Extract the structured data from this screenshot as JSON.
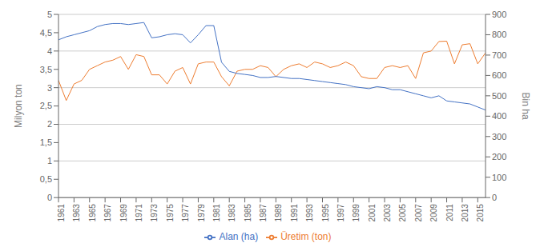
{
  "chart_data": {
    "type": "line",
    "x": [
      1961,
      1962,
      1963,
      1964,
      1965,
      1966,
      1967,
      1968,
      1969,
      1970,
      1971,
      1972,
      1973,
      1974,
      1975,
      1976,
      1977,
      1978,
      1979,
      1980,
      1981,
      1982,
      1983,
      1984,
      1985,
      1986,
      1987,
      1988,
      1989,
      1990,
      1991,
      1992,
      1993,
      1994,
      1995,
      1996,
      1997,
      1998,
      1999,
      2000,
      2001,
      2002,
      2003,
      2004,
      2005,
      2006,
      2007,
      2008,
      2009,
      2010,
      2011,
      2012,
      2013,
      2014,
      2015,
      2016
    ],
    "series": [
      {
        "name": "Üretim (ton)",
        "color": "#ED7D31",
        "values": [
          3.2,
          2.65,
          3.1,
          3.2,
          3.5,
          3.6,
          3.7,
          3.75,
          3.85,
          3.5,
          3.9,
          3.85,
          3.35,
          3.35,
          3.1,
          3.45,
          3.55,
          3.1,
          3.65,
          3.7,
          3.7,
          3.3,
          3.05,
          3.45,
          3.5,
          3.5,
          3.6,
          3.55,
          3.3,
          3.5,
          3.6,
          3.65,
          3.55,
          3.7,
          3.65,
          3.55,
          3.6,
          3.7,
          3.6,
          3.3,
          3.25,
          3.25,
          3.55,
          3.6,
          3.55,
          3.6,
          3.25,
          3.95,
          4.0,
          4.26,
          4.27,
          3.65,
          4.17,
          4.2,
          3.65,
          3.95
        ]
      },
      {
        "name": "Alan (ha)",
        "color": "#4472C4",
        "axis": "y2",
        "values": [
          775,
          790,
          800,
          810,
          820,
          840,
          850,
          855,
          855,
          850,
          855,
          860,
          785,
          790,
          800,
          805,
          800,
          760,
          800,
          845,
          845,
          665,
          620,
          610,
          605,
          600,
          590,
          590,
          595,
          590,
          585,
          585,
          580,
          575,
          570,
          565,
          560,
          555,
          545,
          540,
          535,
          545,
          540,
          530,
          530,
          520,
          510,
          500,
          490,
          500,
          475,
          470,
          465,
          460,
          445,
          430
        ]
      }
    ],
    "ylabel": "Milyon ton",
    "y2label": "Bin ha",
    "xlim": [
      1961,
      2016
    ],
    "xticks": [
      1961,
      1963,
      1965,
      1967,
      1969,
      1971,
      1973,
      1975,
      1977,
      1979,
      1981,
      1983,
      1985,
      1987,
      1989,
      1991,
      1993,
      1995,
      1997,
      1999,
      2001,
      2003,
      2005,
      2007,
      2009,
      2011,
      2013,
      2015
    ],
    "ylim": [
      0,
      5
    ],
    "yticks": [
      0,
      {
        "value": 0.5,
        "label": "0,5"
      },
      1,
      {
        "value": 1.5,
        "label": "1,5"
      },
      2,
      {
        "value": 2.5,
        "label": "2,5"
      },
      3,
      {
        "value": 3.5,
        "label": "3,5"
      },
      4,
      {
        "value": 4.5,
        "label": "4,5"
      },
      5
    ],
    "y2lim": [
      0,
      900
    ],
    "y2ticks": [
      0,
      100,
      200,
      300,
      400,
      500,
      600,
      700,
      800,
      900
    ],
    "grid": "y",
    "legend": "bottom"
  }
}
